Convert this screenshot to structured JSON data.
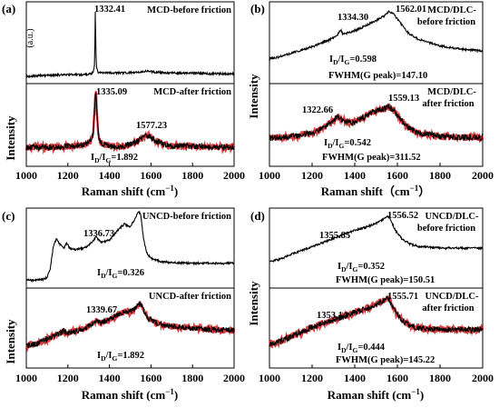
{
  "chart_data": [
    {
      "type": "line",
      "panel_label": "(a)",
      "ylabel": "Intensity",
      "xlabel": "Raman shift (cm⁻¹)",
      "xlim": [
        1000,
        2000
      ],
      "xticks": [
        "1000",
        "1200",
        "1400",
        "1600",
        "1800",
        "2000"
      ],
      "grid": false,
      "subplots": [
        {
          "name": "MCD-before friction",
          "ylabel": "(a.u.)",
          "color": "#000000",
          "ylim": [
            0,
            1
          ],
          "x": [
            1000,
            1100,
            1200,
            1280,
            1310,
            1322,
            1328,
            1330,
            1332.41,
            1334,
            1337,
            1345,
            1360,
            1400,
            1480,
            1540,
            1580,
            1620,
            1700,
            1800,
            1900,
            2000
          ],
          "y": [
            0.09,
            0.1,
            0.11,
            0.11,
            0.12,
            0.14,
            0.22,
            0.5,
            0.96,
            0.55,
            0.2,
            0.14,
            0.13,
            0.13,
            0.13,
            0.14,
            0.15,
            0.14,
            0.13,
            0.13,
            0.12,
            0.12
          ],
          "annotations": [
            {
              "x": 1332.41,
              "y": 0.97,
              "text": "1332.41"
            },
            {
              "text": "MCD-before friction",
              "position": "top-right"
            }
          ]
        },
        {
          "name": "MCD-after friction",
          "color": "#000000",
          "fit_color": "#d42020",
          "ylim": [
            0,
            1
          ],
          "x": [
            1000,
            1100,
            1200,
            1280,
            1310,
            1322,
            1330,
            1335.09,
            1340,
            1348,
            1360,
            1400,
            1450,
            1500,
            1540,
            1560,
            1577.23,
            1600,
            1620,
            1660,
            1700,
            1800,
            1900,
            2000
          ],
          "y": [
            0.23,
            0.23,
            0.24,
            0.26,
            0.3,
            0.4,
            0.75,
            0.96,
            0.62,
            0.36,
            0.28,
            0.25,
            0.24,
            0.26,
            0.31,
            0.35,
            0.38,
            0.35,
            0.31,
            0.27,
            0.25,
            0.24,
            0.23,
            0.23
          ],
          "annotations": [
            {
              "x": 1335.09,
              "y": 0.97,
              "text": "1335.09"
            },
            {
              "x": 1577.23,
              "y": 0.4,
              "text": "1577.23"
            },
            {
              "text": "MCD-after friction",
              "position": "top-right"
            },
            {
              "text": "ID/IG=1.892",
              "position": "bottom-center"
            }
          ]
        }
      ]
    },
    {
      "type": "line",
      "panel_label": "(b)",
      "ylabel": "Intensity",
      "xlabel": "Raman shift（cm⁻¹）",
      "xlim": [
        1000,
        2000
      ],
      "xticks": [
        "1000",
        "1200",
        "1400",
        "1600",
        "1800",
        "2000"
      ],
      "grid": false,
      "subplots": [
        {
          "name": "MCD/DLC-before friction",
          "color": "#000000",
          "ylim": [
            0,
            1
          ],
          "x": [
            1000,
            1050,
            1100,
            1150,
            1200,
            1250,
            1300,
            1320,
            1334.3,
            1345,
            1380,
            1420,
            1460,
            1500,
            1540,
            1562.01,
            1580,
            1600,
            1620,
            1650,
            1700,
            1800,
            1900,
            2000
          ],
          "y": [
            0.3,
            0.33,
            0.37,
            0.41,
            0.45,
            0.5,
            0.56,
            0.6,
            0.66,
            0.6,
            0.63,
            0.67,
            0.72,
            0.77,
            0.83,
            0.88,
            0.86,
            0.79,
            0.72,
            0.62,
            0.54,
            0.46,
            0.42,
            0.4
          ],
          "annotations": [
            {
              "x": 1334.3,
              "y": 0.7,
              "text": "1334.30"
            },
            {
              "x": 1562.01,
              "y": 0.92,
              "text": "1562.01"
            },
            {
              "text": "MCD/DLC-",
              "position": "top-right"
            },
            {
              "text": "before friction",
              "position": "top-right"
            },
            {
              "text": "ID/IG=0.598",
              "position": "lower-left"
            },
            {
              "text": "FWHM(G peak)=147.10",
              "position": "bottom"
            }
          ]
        },
        {
          "name": "MCD/DLC-after friction",
          "color": "#000000",
          "fit_color": "#d42020",
          "ylim": [
            0,
            1
          ],
          "x": [
            1000,
            1100,
            1200,
            1250,
            1300,
            1322.66,
            1345,
            1380,
            1420,
            1460,
            1500,
            1540,
            1559.13,
            1580,
            1620,
            1660,
            1700,
            1800,
            1900,
            2000
          ],
          "y": [
            0.34,
            0.36,
            0.4,
            0.46,
            0.55,
            0.6,
            0.56,
            0.52,
            0.56,
            0.62,
            0.67,
            0.7,
            0.72,
            0.68,
            0.55,
            0.45,
            0.4,
            0.36,
            0.35,
            0.35
          ],
          "annotations": [
            {
              "x": 1322.66,
              "y": 0.64,
              "text": "1322.66"
            },
            {
              "x": 1559.13,
              "y": 0.78,
              "text": "1559.13"
            },
            {
              "text": "MCD/DLC-",
              "position": "top-right"
            },
            {
              "text": "after friction",
              "position": "top-right"
            },
            {
              "text": "ID/IG=0.542",
              "position": "lower-left"
            },
            {
              "text": "FWHM(G peak)=311.52",
              "position": "bottom"
            }
          ]
        }
      ]
    },
    {
      "type": "line",
      "panel_label": "(c)",
      "ylabel": "Intensity",
      "xlabel": "Raman shift (cm⁻¹)",
      "xlim": [
        1000,
        2000
      ],
      "xticks": [
        "1000",
        "1200",
        "1400",
        "1600",
        "1800",
        "2000"
      ],
      "grid": false,
      "subplots": [
        {
          "name": "UNCD-before friction",
          "color": "#000000",
          "ylim": [
            0,
            1
          ],
          "x": [
            1000,
            1050,
            1080,
            1100,
            1115,
            1130,
            1145,
            1160,
            1180,
            1195,
            1210,
            1240,
            1280,
            1310,
            1336.73,
            1360,
            1400,
            1440,
            1470,
            1500,
            1520,
            1540,
            1550,
            1565,
            1580,
            1600,
            1650,
            1700,
            1800,
            1900,
            2000
          ],
          "y": [
            0.1,
            0.1,
            0.11,
            0.13,
            0.24,
            0.52,
            0.62,
            0.55,
            0.5,
            0.56,
            0.49,
            0.48,
            0.5,
            0.56,
            0.64,
            0.57,
            0.6,
            0.72,
            0.8,
            0.77,
            0.85,
            0.96,
            0.92,
            0.6,
            0.44,
            0.37,
            0.33,
            0.32,
            0.31,
            0.31,
            0.31
          ],
          "annotations": [
            {
              "x": 1336.73,
              "y": 0.68,
              "text": "1336.73"
            },
            {
              "text": "UNCD-before friction",
              "position": "top-right"
            },
            {
              "text": "ID/IG=0.326",
              "position": "lower-center"
            }
          ]
        },
        {
          "name": "UNCD-after friction",
          "color": "#000000",
          "fit_color": "#d42020",
          "ylim": [
            0,
            1
          ],
          "x": [
            1000,
            1050,
            1100,
            1150,
            1180,
            1200,
            1250,
            1300,
            1339.67,
            1360,
            1400,
            1440,
            1480,
            1500,
            1520,
            1550,
            1570,
            1590,
            1620,
            1660,
            1700,
            1800,
            1900,
            2000
          ],
          "y": [
            0.28,
            0.3,
            0.36,
            0.43,
            0.46,
            0.44,
            0.47,
            0.52,
            0.6,
            0.56,
            0.61,
            0.66,
            0.71,
            0.7,
            0.74,
            0.81,
            0.7,
            0.62,
            0.57,
            0.54,
            0.52,
            0.5,
            0.48,
            0.47
          ],
          "annotations": [
            {
              "x": 1339.67,
              "y": 0.64,
              "text": "1339.67"
            },
            {
              "text": "UNCD-after friction",
              "position": "top-right"
            },
            {
              "text": "ID/IG=1.892",
              "position": "lower-center"
            }
          ]
        }
      ]
    },
    {
      "type": "line",
      "panel_label": "(d)",
      "ylabel": "Intensity",
      "xlabel": "Raman shift (cm⁻¹)",
      "xlim": [
        1000,
        2000
      ],
      "xticks": [
        "1000",
        "1200",
        "1400",
        "1600",
        "1800",
        "2000"
      ],
      "grid": false,
      "subplots": [
        {
          "name": "UNCD/DLC-before friction",
          "color": "#000000",
          "ylim": [
            0,
            1
          ],
          "x": [
            1000,
            1050,
            1100,
            1150,
            1200,
            1250,
            1300,
            1355.85,
            1400,
            1450,
            1500,
            1540,
            1556.52,
            1570,
            1590,
            1620,
            1660,
            1700,
            1800,
            1900,
            2000
          ],
          "y": [
            0.33,
            0.36,
            0.42,
            0.47,
            0.52,
            0.57,
            0.62,
            0.68,
            0.72,
            0.76,
            0.81,
            0.87,
            0.9,
            0.85,
            0.72,
            0.62,
            0.55,
            0.52,
            0.5,
            0.5,
            0.5
          ],
          "annotations": [
            {
              "x": 1355.85,
              "y": 0.74,
              "text": "1355.85"
            },
            {
              "x": 1556.52,
              "y": 0.94,
              "text": "1556.52"
            },
            {
              "text": "UNCD/DLC-",
              "position": "top-right"
            },
            {
              "text": "before friction",
              "position": "top-right"
            },
            {
              "text": "ID/IG=0.352",
              "position": "lower-center"
            },
            {
              "text": "FWHM(G peak)=150.51",
              "position": "bottom"
            }
          ]
        },
        {
          "name": "UNCD/DLC-after friction",
          "color": "#000000",
          "fit_color": "#d42020",
          "ylim": [
            0,
            1
          ],
          "x": [
            1000,
            1050,
            1100,
            1150,
            1200,
            1250,
            1300,
            1353.14,
            1400,
            1450,
            1500,
            1540,
            1555.71,
            1570,
            1590,
            1620,
            1660,
            1700,
            1800,
            1900,
            2000
          ],
          "y": [
            0.3,
            0.33,
            0.39,
            0.45,
            0.51,
            0.56,
            0.6,
            0.65,
            0.7,
            0.74,
            0.79,
            0.85,
            0.88,
            0.82,
            0.7,
            0.6,
            0.53,
            0.5,
            0.48,
            0.48,
            0.48
          ],
          "annotations": [
            {
              "x": 1353.14,
              "y": 0.71,
              "text": "1353.14"
            },
            {
              "x": 1555.71,
              "y": 0.92,
              "text": "1555.71"
            },
            {
              "text": "UNCD/DLC-",
              "position": "top-right"
            },
            {
              "text": "after friction",
              "position": "top-right"
            },
            {
              "text": "ID/IG=0.444",
              "position": "lower-center"
            },
            {
              "text": "FWHM(G peak)=145.22",
              "position": "bottom"
            }
          ]
        }
      ]
    }
  ],
  "panels": [
    {
      "label": "(a)",
      "ylabel": "Intensity",
      "xlabel_main": "Raman shift (cm",
      "xlabel_sup": "−1",
      "xlabel_end": ")",
      "xticks": [
        "1000",
        "1200",
        "1400",
        "1600",
        "1800",
        "2000"
      ],
      "top": {
        "unit": "(a.u.)",
        "title_lines": [
          "MCD-before friction"
        ],
        "peaks": [
          "1332.41"
        ],
        "ratio": null,
        "fwhm": null
      },
      "bottom": {
        "unit": null,
        "title_lines": [
          "MCD-after friction"
        ],
        "peaks": [
          "1335.09",
          "1577.23"
        ],
        "ratio": {
          "a": "I",
          "b": "D",
          "slash": "/I",
          "c": "G",
          "val": "=1.892"
        },
        "fwhm": null
      }
    },
    {
      "label": "(b)",
      "ylabel": "Intensity",
      "xlabel_main": "Raman shift（cm",
      "xlabel_sup": "−1",
      "xlabel_end": "）",
      "xticks": [
        "1000",
        "1200",
        "1400",
        "1600",
        "1800",
        "2000"
      ],
      "top": {
        "unit": null,
        "title_lines": [
          "MCD/DLC-",
          "before friction"
        ],
        "peaks": [
          "1334.30",
          "1562.01"
        ],
        "ratio": {
          "a": "I",
          "b": "D",
          "slash": "/I",
          "c": "G",
          "val": "=0.598"
        },
        "fwhm": "FWHM(G peak)=147.10"
      },
      "bottom": {
        "unit": null,
        "title_lines": [
          "MCD/DLC-",
          "after friction"
        ],
        "peaks": [
          "1322.66",
          "1559.13"
        ],
        "ratio": {
          "a": "I",
          "b": "D",
          "slash": "/I",
          "c": "G",
          "val": "=0.542"
        },
        "fwhm": "FWHM(G peak)=311.52"
      }
    },
    {
      "label": "(c)",
      "ylabel": "Intensity",
      "xlabel_main": "Raman shift (cm",
      "xlabel_sup": "−1",
      "xlabel_end": ")",
      "xticks": [
        "1000",
        "1200",
        "1400",
        "1600",
        "1800",
        "2000"
      ],
      "top": {
        "unit": null,
        "title_lines": [
          "UNCD-before friction"
        ],
        "peaks": [
          "1336.73"
        ],
        "ratio": {
          "a": "I",
          "b": "D",
          "slash": "/I",
          "c": "G",
          "val": "=0.326"
        },
        "fwhm": null
      },
      "bottom": {
        "unit": null,
        "title_lines": [
          "UNCD-after friction"
        ],
        "peaks": [
          "1339.67"
        ],
        "ratio": {
          "a": "I",
          "b": "D",
          "slash": "/I",
          "c": "G",
          "val": "=1.892"
        },
        "fwhm": null
      }
    },
    {
      "label": "(d)",
      "ylabel": "Intensity",
      "xlabel_main": "Raman shift (cm",
      "xlabel_sup": "−1",
      "xlabel_end": ")",
      "xticks": [
        "1000",
        "1200",
        "1400",
        "1600",
        "1800",
        "2000"
      ],
      "top": {
        "unit": null,
        "title_lines": [
          "UNCD/DLC-",
          "before friction"
        ],
        "peaks": [
          "1355.85",
          "1556.52"
        ],
        "ratio": {
          "a": "I",
          "b": "D",
          "slash": "/I",
          "c": "G",
          "val": "=0.352"
        },
        "fwhm": "FWHM(G peak)=150.51"
      },
      "bottom": {
        "unit": null,
        "title_lines": [
          "UNCD/DLC-",
          "after friction"
        ],
        "peaks": [
          "1353.14",
          "1555.71"
        ],
        "ratio": {
          "a": "I",
          "b": "D",
          "slash": "/I",
          "c": "G",
          "val": "=0.444"
        },
        "fwhm": "FWHM(G peak)=145.22"
      }
    }
  ]
}
